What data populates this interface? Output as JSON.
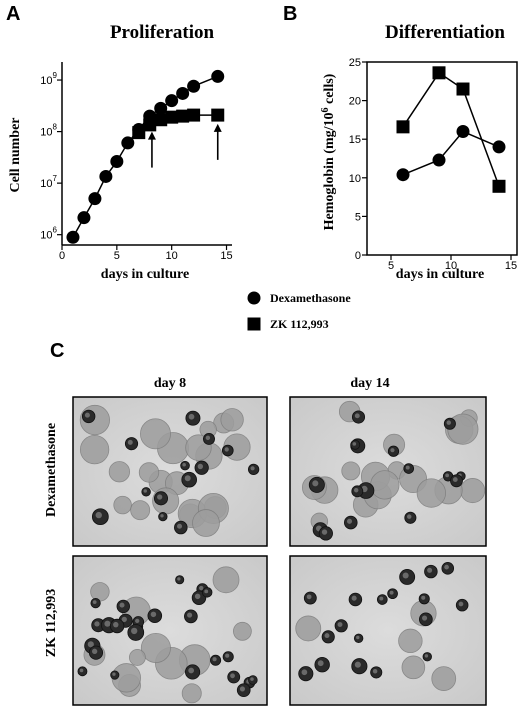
{
  "panels": {
    "a": {
      "letter": "A",
      "title": "Proliferation"
    },
    "b": {
      "letter": "B",
      "title": "Differentiation"
    },
    "c": {
      "letter": "C"
    }
  },
  "legend": [
    {
      "label": "Dexamethasone",
      "marker": "circle"
    },
    {
      "label": "ZK 112,993",
      "marker": "square"
    }
  ],
  "photos": {
    "columns": [
      "day 8",
      "day 14"
    ],
    "rows": [
      "Dexamethasone",
      "ZK 112,993"
    ]
  },
  "chart_data": [
    {
      "type": "line",
      "title": "Proliferation",
      "xlabel": "days in culture",
      "ylabel": "Cell number",
      "xlim": [
        0,
        15.5
      ],
      "ylim": [
        5.8,
        9.35
      ],
      "yscale": "log",
      "xticks": [
        0,
        5,
        10,
        15
      ],
      "yticks": [
        {
          "value": 6,
          "base": "10",
          "exp": "6"
        },
        {
          "value": 7,
          "base": "10",
          "exp": "7"
        },
        {
          "value": 8,
          "base": "10",
          "exp": "8"
        },
        {
          "value": 9,
          "base": "10",
          "exp": "9"
        }
      ],
      "series": [
        {
          "name": "Dexamethasone",
          "marker": "circle",
          "x": [
            1,
            2,
            3,
            4,
            5,
            6,
            7,
            8,
            9,
            10,
            11,
            12,
            14.2
          ],
          "y": [
            5.95,
            6.33,
            6.7,
            7.13,
            7.42,
            7.78,
            8.04,
            8.3,
            8.45,
            8.6,
            8.74,
            8.88,
            9.07
          ]
        },
        {
          "name": "ZK 112,993",
          "marker": "square",
          "x": [
            7,
            8,
            9,
            10,
            11,
            12,
            14.2
          ],
          "y": [
            7.98,
            8.13,
            8.23,
            8.28,
            8.3,
            8.32,
            8.32
          ]
        }
      ],
      "annotations": [
        {
          "type": "arrow",
          "x": 8.2,
          "y": 8.0
        },
        {
          "type": "arrow",
          "x": 14.2,
          "y": 8.15
        }
      ]
    },
    {
      "type": "line",
      "title": "Differentiation",
      "xlabel": "days in culture",
      "ylabel": "Hemoglobin (mg/10⁶ cells)",
      "ylabel_parts": [
        "Hemoglobin (mg/10",
        "6",
        " cells)"
      ],
      "xlim": [
        3,
        15.5
      ],
      "ylim": [
        0,
        25
      ],
      "xticks": [
        5,
        10,
        15
      ],
      "yticks": [
        0,
        5,
        10,
        15,
        20,
        25
      ],
      "series": [
        {
          "name": "Dexamethasone",
          "marker": "circle",
          "x": [
            6,
            9,
            11,
            14
          ],
          "y": [
            10.4,
            12.3,
            16.0,
            14.0
          ]
        },
        {
          "name": "ZK 112,993",
          "marker": "square",
          "x": [
            6,
            9,
            11,
            14
          ],
          "y": [
            16.6,
            23.6,
            21.5,
            8.9
          ]
        }
      ]
    }
  ]
}
